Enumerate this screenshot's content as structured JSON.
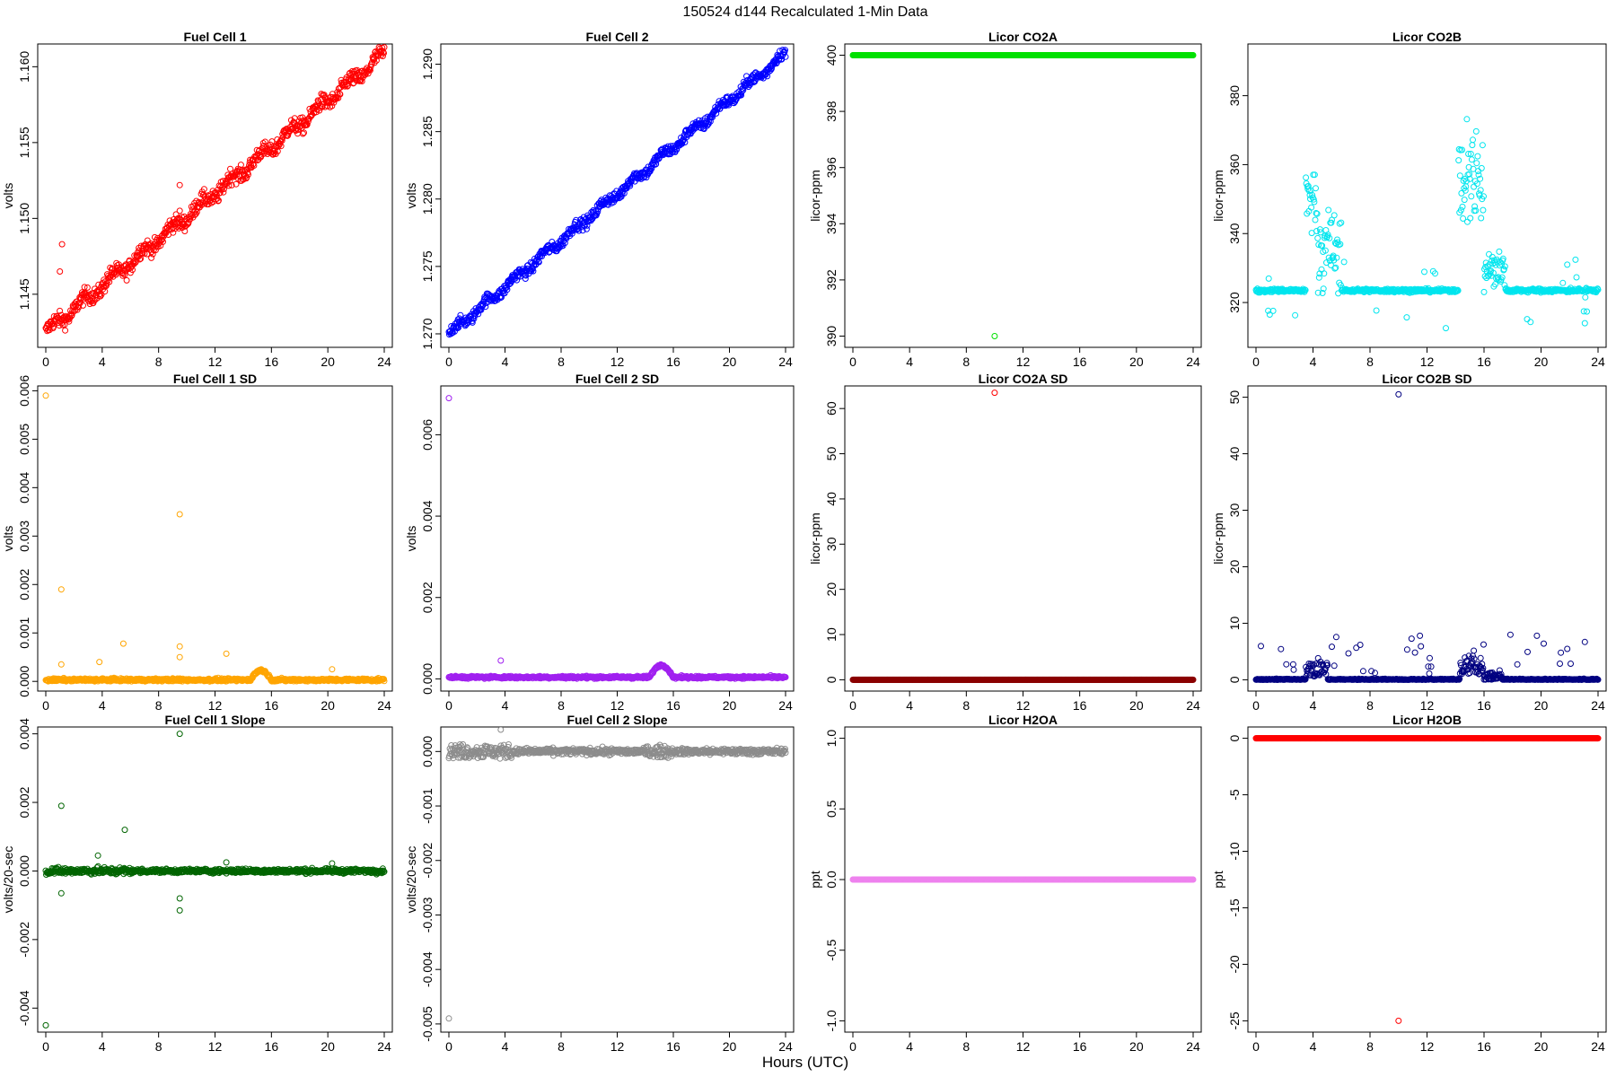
{
  "header": {
    "title": "150524   d144   Recalculated 1-Min Data",
    "xlabel": "Hours (UTC)"
  },
  "chart_data": [
    {
      "type": "scatter",
      "title": "Fuel Cell 1",
      "ylabel": "volts",
      "xlim": [
        0,
        24
      ],
      "ylim": [
        1.1415,
        1.1615
      ],
      "xticks": [
        "0",
        "4",
        "8",
        "12",
        "16",
        "20",
        "24"
      ],
      "yticks": [
        "1.145",
        "1.150",
        "1.155",
        "1.160"
      ],
      "color": "#ff0000",
      "series": {
        "kind": "trend",
        "y0": 1.1425,
        "y1": 1.1608,
        "noise": 0.0005,
        "outliers": [
          [
            1.0,
            1.1465
          ],
          [
            1.15,
            1.1483
          ],
          [
            9.5,
            1.1522
          ],
          [
            9.5,
            1.1505
          ]
        ]
      }
    },
    {
      "type": "scatter",
      "title": "Fuel Cell 2",
      "ylabel": "volts",
      "xlim": [
        0,
        24
      ],
      "ylim": [
        1.269,
        1.2915
      ],
      "xticks": [
        "0",
        "4",
        "8",
        "12",
        "16",
        "20",
        "24"
      ],
      "yticks": [
        "1.270",
        "1.275",
        "1.280",
        "1.285",
        "1.290"
      ],
      "color": "#0000ff",
      "series": {
        "kind": "trend",
        "y0": 1.27,
        "y1": 1.2908,
        "noise": 0.0004,
        "outliers": []
      }
    },
    {
      "type": "scatter",
      "title": "Licor CO2A",
      "ylabel": "licor-ppm",
      "xlim": [
        0,
        24
      ],
      "ylim": [
        389.6,
        400.4
      ],
      "xticks": [
        "0",
        "4",
        "8",
        "12",
        "16",
        "20",
        "24"
      ],
      "yticks": [
        "390",
        "392",
        "394",
        "396",
        "398",
        "400"
      ],
      "color": "#00e000",
      "series": {
        "kind": "flat",
        "y": 400,
        "noise": 0,
        "outliers": [
          [
            10,
            390
          ]
        ]
      }
    },
    {
      "type": "scatter",
      "title": "Licor CO2B",
      "ylabel": "licor-ppm",
      "xlim": [
        0,
        24
      ],
      "ylim": [
        307,
        395
      ],
      "xticks": [
        "0",
        "4",
        "8",
        "12",
        "16",
        "20",
        "24"
      ],
      "yticks": [
        "320",
        "340",
        "360",
        "380"
      ],
      "color": "#00e5ee",
      "series": {
        "kind": "co2b",
        "y": 323.5,
        "noise": 0.5
      }
    },
    {
      "type": "scatter",
      "title": "Fuel Cell 1 SD",
      "ylabel": "volts",
      "xlim": [
        0,
        24
      ],
      "ylim": [
        -0.0002,
        0.0061
      ],
      "xticks": [
        "0",
        "4",
        "8",
        "12",
        "16",
        "20",
        "24"
      ],
      "yticks": [
        "0.000",
        "0.001",
        "0.002",
        "0.003",
        "0.004",
        "0.005",
        "0.006"
      ],
      "color": "#ffa500",
      "series": {
        "kind": "sd",
        "y": 3e-05,
        "noise": 3e-05,
        "bump": [
          14.5,
          16,
          0.0002
        ],
        "outliers": [
          [
            0,
            0.0059
          ],
          [
            1.1,
            0.0019
          ],
          [
            1.1,
            0.00035
          ],
          [
            3.8,
            0.0004
          ],
          [
            5.5,
            0.00078
          ],
          [
            9.5,
            0.00345
          ],
          [
            9.5,
            0.00072
          ],
          [
            9.5,
            0.0005
          ],
          [
            12.8,
            0.00057
          ],
          [
            20.3,
            0.00025
          ]
        ]
      }
    },
    {
      "type": "scatter",
      "title": "Fuel Cell 2 SD",
      "ylabel": "volts",
      "xlim": [
        0,
        24
      ],
      "ylim": [
        -0.0003,
        0.0072
      ],
      "xticks": [
        "0",
        "4",
        "8",
        "12",
        "16",
        "20",
        "24"
      ],
      "yticks": [
        "0.000",
        "0.002",
        "0.004",
        "0.006"
      ],
      "color": "#a020f0",
      "series": {
        "kind": "sd",
        "y": 4e-05,
        "noise": 3e-05,
        "bump": [
          14.3,
          16,
          0.0003
        ],
        "outliers": [
          [
            0,
            0.0069
          ],
          [
            3.7,
            0.00045
          ]
        ]
      }
    },
    {
      "type": "scatter",
      "title": "Licor CO2A SD",
      "ylabel": "licor-ppm",
      "xlim": [
        0,
        24
      ],
      "ylim": [
        -2.5,
        65
      ],
      "xticks": [
        "0",
        "4",
        "8",
        "12",
        "16",
        "20",
        "24"
      ],
      "yticks": [
        "0",
        "10",
        "20",
        "30",
        "40",
        "50",
        "60"
      ],
      "color": "#8b0000",
      "series": {
        "kind": "flat",
        "y": 0,
        "noise": 0,
        "outliers": [
          [
            10,
            63.5
          ]
        ]
      },
      "outlier_color": "#ff0000"
    },
    {
      "type": "scatter",
      "title": "Licor CO2B SD",
      "ylabel": "licor-ppm",
      "xlim": [
        0,
        24
      ],
      "ylim": [
        -2.0,
        52
      ],
      "xticks": [
        "0",
        "4",
        "8",
        "12",
        "16",
        "20",
        "24"
      ],
      "yticks": [
        "0",
        "10",
        "20",
        "30",
        "40",
        "50"
      ],
      "color": "#000080",
      "series": {
        "kind": "co2bsd",
        "y": 0,
        "noise": 0.1,
        "outliers": [
          [
            10,
            50.5
          ]
        ]
      }
    },
    {
      "type": "scatter",
      "title": "Fuel Cell 1 Slope",
      "ylabel": "volts/20-sec",
      "xlim": [
        0,
        24
      ],
      "ylim": [
        -0.0047,
        0.0042
      ],
      "xticks": [
        "0",
        "4",
        "8",
        "12",
        "16",
        "20",
        "24"
      ],
      "yticks": [
        "-0.004",
        "-0.002",
        "0.000",
        "0.002",
        "0.004"
      ],
      "color": "#006400",
      "series": {
        "kind": "slope",
        "y": 0,
        "noise": 6e-05,
        "outliers": [
          [
            0,
            -0.0045
          ],
          [
            1.1,
            0.0019
          ],
          [
            1.1,
            -0.00065
          ],
          [
            3.7,
            0.00045
          ],
          [
            5.6,
            0.0012
          ],
          [
            9.5,
            0.004
          ],
          [
            9.5,
            -0.0008
          ],
          [
            9.5,
            -0.00115
          ],
          [
            12.8,
            0.00025
          ],
          [
            20.3,
            0.00022
          ]
        ]
      }
    },
    {
      "type": "scatter",
      "title": "Fuel Cell 2 Slope",
      "ylabel": "volts/20-sec",
      "xlim": [
        0,
        24
      ],
      "ylim": [
        -0.00515,
        0.00045
      ],
      "xticks": [
        "0",
        "4",
        "8",
        "12",
        "16",
        "20",
        "24"
      ],
      "yticks": [
        "-0.005",
        "-0.004",
        "-0.003",
        "-0.002",
        "-0.001",
        "0.000"
      ],
      "color": "#8c8c8c",
      "series": {
        "kind": "slope2",
        "y": 0,
        "noise": 7e-05,
        "outliers": [
          [
            0,
            -0.0049
          ],
          [
            3.7,
            0.0004
          ]
        ]
      }
    },
    {
      "type": "scatter",
      "title": "Licor H2OA",
      "ylabel": "ppt",
      "xlim": [
        0,
        24
      ],
      "ylim": [
        -1.08,
        1.08
      ],
      "xticks": [
        "0",
        "4",
        "8",
        "12",
        "16",
        "20",
        "24"
      ],
      "yticks": [
        "-1.0",
        "-0.5",
        "0.0",
        "0.5",
        "1.0"
      ],
      "color": "#ee82ee",
      "series": {
        "kind": "flat",
        "y": 0,
        "noise": 0,
        "outliers": []
      }
    },
    {
      "type": "scatter",
      "title": "Licor H2OB",
      "ylabel": "ppt",
      "xlim": [
        0,
        24
      ],
      "ylim": [
        -26.0,
        1.0
      ],
      "xticks": [
        "0",
        "4",
        "8",
        "12",
        "16",
        "20",
        "24"
      ],
      "yticks": [
        "-25",
        "-20",
        "-15",
        "-10",
        "-5",
        "0"
      ],
      "color": "#ff0000",
      "series": {
        "kind": "flat",
        "y": 0,
        "noise": 0,
        "outliers": [
          [
            10,
            -25
          ]
        ]
      }
    }
  ]
}
